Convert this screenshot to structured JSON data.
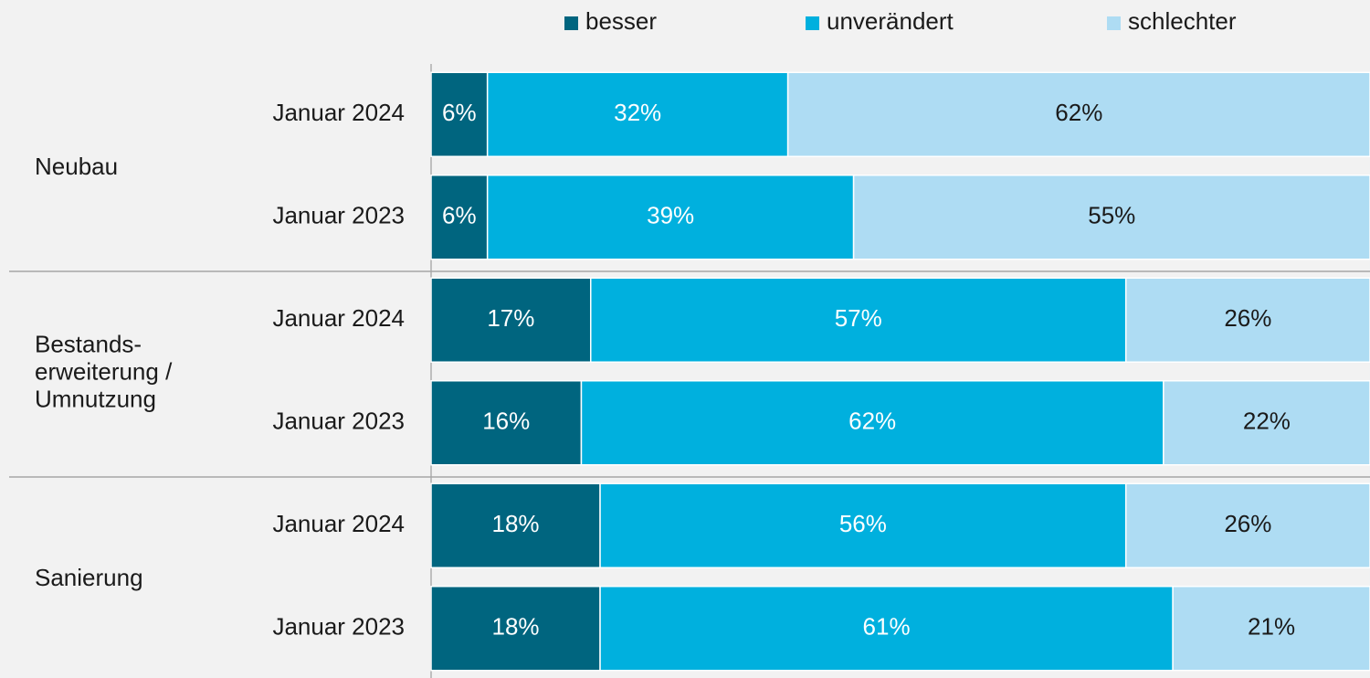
{
  "chart_data": {
    "type": "stacked-bar-horizontal",
    "groups": [
      "Neubau",
      "Bestands-\nerweiterung /\nUmnutzung",
      "Sanierung"
    ],
    "categories": [
      "Januar 2024",
      "Januar 2023",
      "Januar 2024",
      "Januar 2023",
      "Januar 2024",
      "Januar 2023"
    ],
    "series": [
      {
        "name": "besser",
        "color": "#00657f",
        "values": [
          6,
          6,
          17,
          16,
          18,
          18
        ],
        "value_labels": [
          "6%",
          "6%",
          "17%",
          "16%",
          "18%",
          "18%"
        ]
      },
      {
        "name": "unverändert",
        "color": "#00b0de",
        "values": [
          32,
          39,
          57,
          62,
          56,
          61
        ],
        "value_labels": [
          "32%",
          "39%",
          "57%",
          "62%",
          "56%",
          "61%"
        ]
      },
      {
        "name": "schlechter",
        "color": "#aedcf3",
        "values": [
          62,
          55,
          26,
          22,
          26,
          21
        ],
        "value_labels": [
          "62%",
          "55%",
          "26%",
          "22%",
          "26%",
          "21%"
        ]
      }
    ],
    "xlim": [
      0,
      100
    ],
    "legend": "top"
  }
}
